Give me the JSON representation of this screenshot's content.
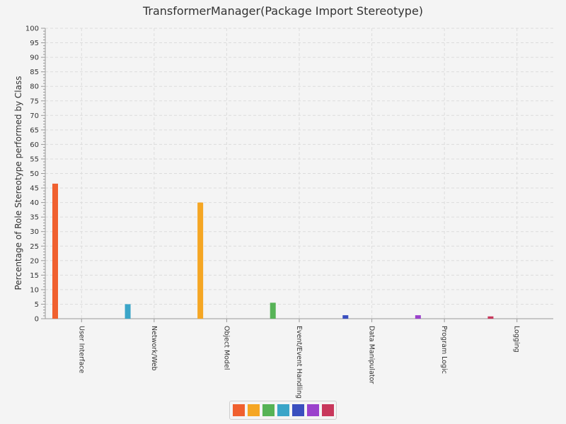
{
  "chart_data": {
    "type": "bar",
    "title": "TransformerManager(Package Import Stereotype)",
    "xlabel": "",
    "ylabel": "Percentage of Role Stereotype performed by Class",
    "ylim": [
      0,
      100
    ],
    "yticks": [
      0,
      5,
      10,
      15,
      20,
      25,
      30,
      35,
      40,
      45,
      50,
      55,
      60,
      65,
      70,
      75,
      80,
      85,
      90,
      95,
      100
    ],
    "grid": true,
    "legend_position": "bottom",
    "categories": [
      "User Interface",
      "Network/Web",
      "Object Model",
      "Event/Event Handling",
      "Data Manipulator",
      "Program Logic",
      "Logging"
    ],
    "values": [
      46.5,
      5.0,
      40.0,
      5.5,
      1.2,
      1.2,
      0.8
    ],
    "colors": [
      "#f0602f",
      "#3aa5c8",
      "#f5a623",
      "#56b356",
      "#3a4fbf",
      "#9b42cc",
      "#c8385c"
    ],
    "legend_colors": [
      "#f0602f",
      "#f5a623",
      "#56b356",
      "#3aa5c8",
      "#3a4fbf",
      "#9b42cc",
      "#c8385c"
    ]
  }
}
